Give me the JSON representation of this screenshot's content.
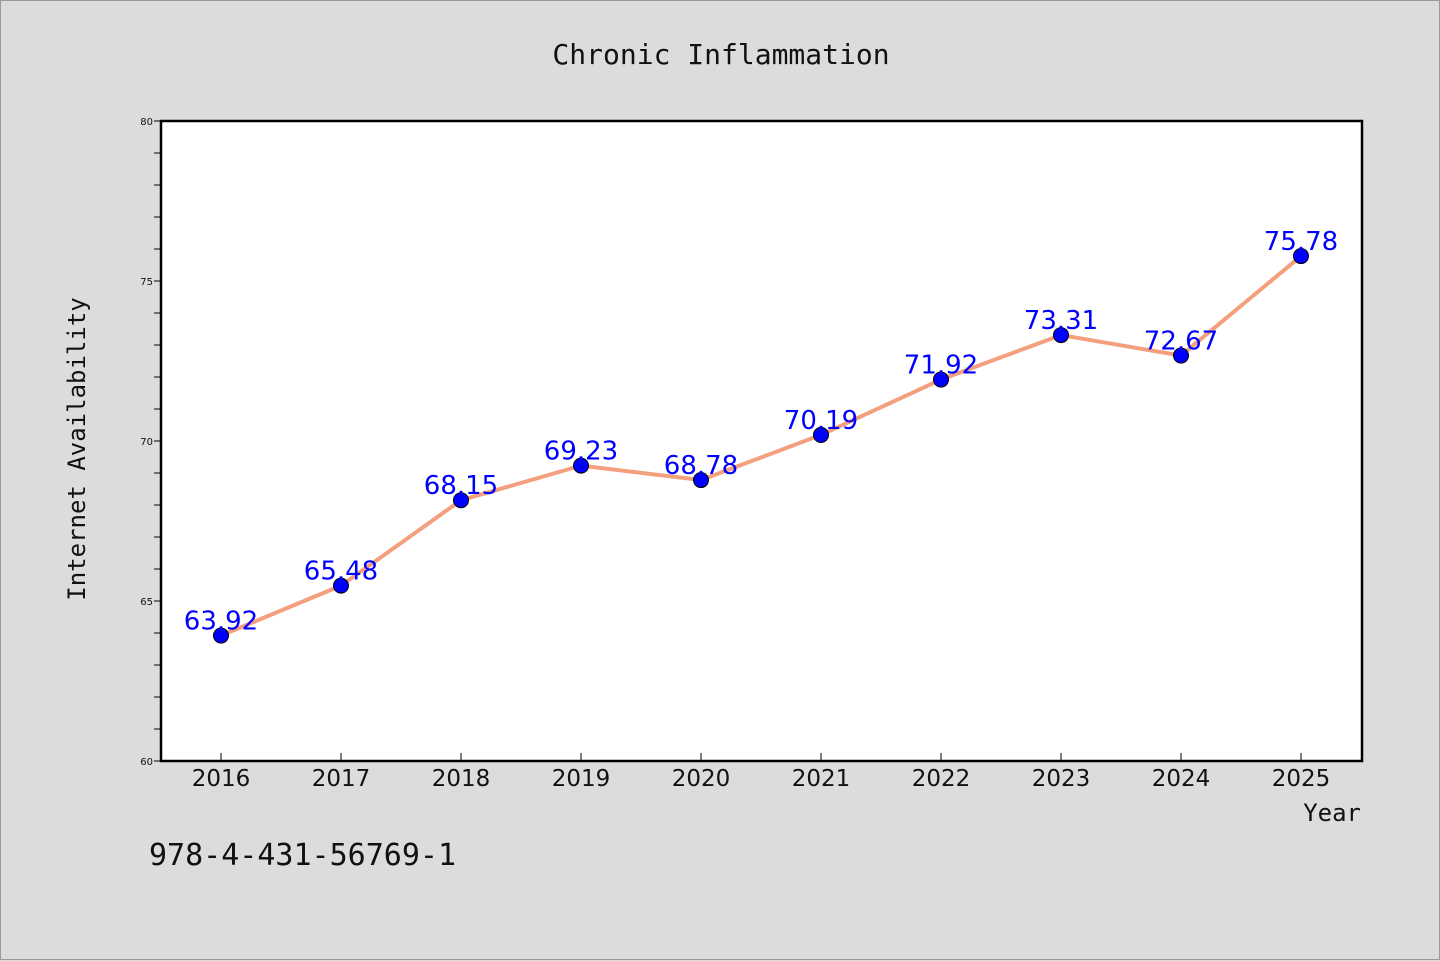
{
  "chart_data": {
    "type": "line",
    "title": "Chronic Inflammation",
    "xlabel": "Year",
    "ylabel": "Internet Availability",
    "categories": [
      "2016",
      "2017",
      "2018",
      "2019",
      "2020",
      "2021",
      "2022",
      "2023",
      "2024",
      "2025"
    ],
    "series": [
      {
        "values": [
          63.92,
          65.48,
          68.15,
          69.23,
          68.78,
          70.19,
          71.92,
          73.31,
          72.67,
          75.78
        ],
        "line_color": "#f4a07e",
        "marker_color": "#0000ff"
      }
    ],
    "data_labels": [
      "63.92",
      "65.48",
      "68.15",
      "69.23",
      "68.78",
      "70.19",
      "71.92",
      "73.31",
      "72.67",
      "75.78"
    ],
    "ylim": [
      60,
      80
    ],
    "yticks": [
      60,
      65,
      70,
      75,
      80
    ],
    "grid": false,
    "legend": false,
    "background_color": "#dcdcdc",
    "plot_background_color": "#ffffff"
  },
  "footer": {
    "code": "978-4-431-56769-1"
  }
}
